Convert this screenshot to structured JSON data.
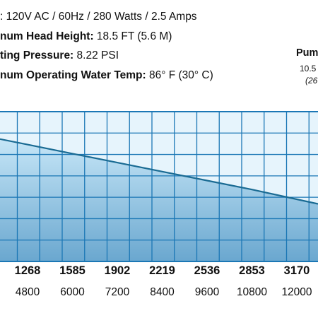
{
  "specs": [
    {
      "label": "",
      "value": ": 120V AC / 60Hz / 280 Watts / 2.5 Amps"
    },
    {
      "label": "num Head Height:",
      "value": " 18.5 FT (5.6 M)"
    },
    {
      "label": "ting Pressure:",
      "value": " 8.22 PSI"
    },
    {
      "label": "num Operating Water Temp:",
      "value": " 86° F (30° C)"
    }
  ],
  "side_note": {
    "title": "Pum",
    "line1": "10.5",
    "line2": "(26"
  },
  "colors": {
    "area_top": "#c6e6f7",
    "area_bottom": "#6aa7cf",
    "grid": "#1b77b5",
    "curve": "#1a6b93"
  },
  "chart_data": {
    "type": "area",
    "x_primary": [
      "1268",
      "1585",
      "1902",
      "2219",
      "2536",
      "2853",
      "3170"
    ],
    "x_secondary": [
      "4800",
      "6000",
      "7200",
      "8400",
      "9600",
      "10800",
      "12000"
    ],
    "y": [
      15.6,
      14.4,
      13.2,
      12.0,
      10.8,
      9.6,
      8.3
    ],
    "grid": true
  }
}
